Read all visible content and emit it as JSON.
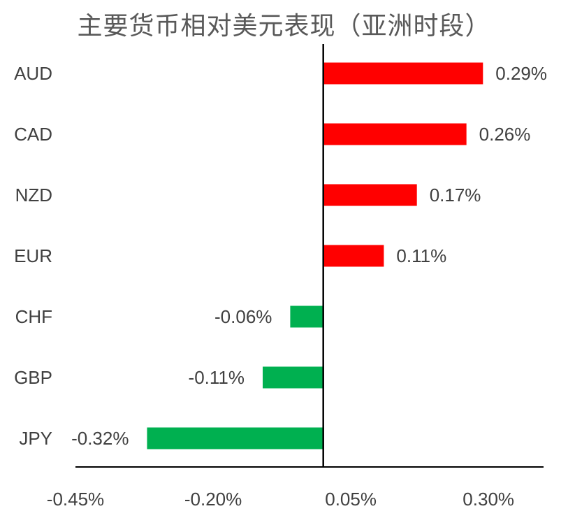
{
  "chart_data": {
    "type": "bar",
    "orientation": "horizontal",
    "title": "主要货币相对美元表现（亚洲时段）",
    "categories": [
      "AUD",
      "CAD",
      "NZD",
      "EUR",
      "CHF",
      "GBP",
      "JPY"
    ],
    "values": [
      0.29,
      0.26,
      0.17,
      0.11,
      -0.06,
      -0.11,
      -0.32
    ],
    "data_labels": [
      "0.29%",
      "0.26%",
      "0.17%",
      "0.11%",
      "-0.06%",
      "-0.11%",
      "-0.32%"
    ],
    "xlabel": "",
    "ylabel": "",
    "xlim": [
      -0.45,
      0.4
    ],
    "x_ticks": [
      -0.45,
      -0.2,
      0.05,
      0.3
    ],
    "x_tick_labels": [
      "-0.45%",
      "-0.20%",
      "0.05%",
      "0.30%"
    ],
    "unit": "%",
    "grid": false,
    "legend": "none",
    "colors": {
      "positive": "#ff0000",
      "negative": "#00b050",
      "axis": "#000000",
      "text": "#404040",
      "title": "#595959"
    }
  }
}
